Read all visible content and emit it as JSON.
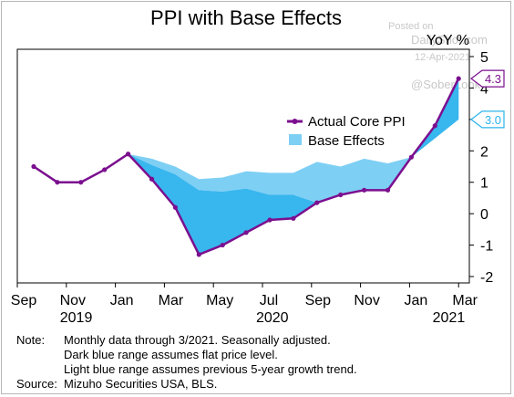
{
  "chart_data": {
    "type": "line",
    "title": "PPI with Base Effects",
    "ylabel": "YoY %",
    "ylim": [
      -2,
      5
    ],
    "yticks": [
      -2,
      -1,
      0,
      1,
      2,
      3,
      4,
      5
    ],
    "xticks": [
      "Sep",
      "Nov",
      "Jan",
      "Mar",
      "May",
      "Jul",
      "Sep",
      "Nov",
      "Jan",
      "Mar"
    ],
    "year_labels": [
      "2019",
      "2020",
      "2021"
    ],
    "x": [
      "Sep 2019",
      "Oct 2019",
      "Nov 2019",
      "Dec 2019",
      "Jan 2020",
      "Feb 2020",
      "Mar 2020",
      "Apr 2020",
      "May 2020",
      "Jun 2020",
      "Jul 2020",
      "Aug 2020",
      "Sep 2020",
      "Oct 2020",
      "Nov 2020",
      "Dec 2020",
      "Jan 2021",
      "Feb 2021",
      "Mar 2021"
    ],
    "series": [
      {
        "name": "Actual Core PPI",
        "color": "#7b0f8f",
        "values": [
          1.5,
          1.0,
          1.0,
          1.4,
          1.9,
          1.1,
          0.2,
          -1.3,
          -1.0,
          -0.6,
          -0.2,
          -0.15,
          0.35,
          0.6,
          0.75,
          0.75,
          1.8,
          2.8,
          4.3
        ]
      },
      {
        "name": "Base Effects",
        "light_color": "#7ecff4",
        "dark_color": "#38b6ee",
        "upper": [
          null,
          null,
          null,
          null,
          1.9,
          1.75,
          1.5,
          1.1,
          1.15,
          1.35,
          1.3,
          1.3,
          1.65,
          1.5,
          1.75,
          1.6,
          1.8,
          2.6,
          4.0
        ],
        "lower": [
          null,
          null,
          null,
          null,
          1.9,
          1.55,
          1.25,
          0.75,
          0.7,
          0.8,
          0.6,
          0.6,
          0.35,
          0.6,
          0.75,
          0.75,
          1.8,
          2.4,
          3.0
        ]
      }
    ],
    "callouts": [
      {
        "value": "4.3",
        "color": "#7b0f8f",
        "y": 4.3
      },
      {
        "value": "3.0",
        "color": "#2ab3ec",
        "y": 3.0
      }
    ],
    "legend_position": "center-right",
    "grid": false
  },
  "watermark": {
    "posted_on": "Posted on",
    "site": "DailyShot.com",
    "date": "12-Apr-2021",
    "handle": "@SoberLook"
  },
  "notes": {
    "note_label": "Note:",
    "note_lines": [
      "Monthly data through 3/2021. Seasonally adjusted.",
      "Dark blue range assumes flat price level.",
      "Light blue range assumes previous 5-year growth trend."
    ],
    "source_label": "Source:",
    "source_text": "Mizuho Securities USA, BLS."
  }
}
